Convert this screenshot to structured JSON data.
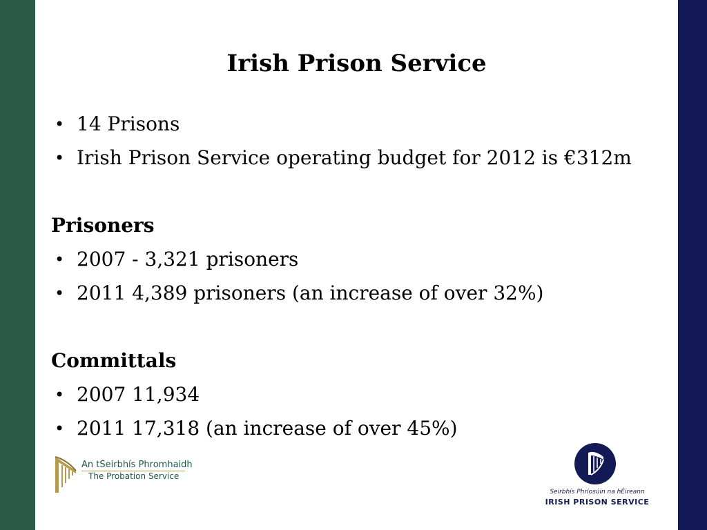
{
  "title": "Irish Prison Service",
  "intro": {
    "items": [
      "14 Prisons",
      "Irish Prison Service operating budget for 2012 is €312m"
    ]
  },
  "prisoners": {
    "heading": "Prisoners",
    "items": [
      "2007 - 3,321 prisoners",
      "2011 4,389 prisoners (an increase of over 32%)"
    ]
  },
  "committals": {
    "heading": "Committals",
    "items": [
      "2007 11,934",
      "2011 17,318 (an increase of over 45%)"
    ]
  },
  "logos": {
    "probation": {
      "line1": "An tSeirbhís Phromhaidh",
      "line2": "The Probation Service"
    },
    "ips": {
      "line1": "Seirbhís Phríosúin na hÉireann",
      "line2": "IRISH PRISON SERVICE"
    }
  },
  "colors": {
    "left_bar": "#2b5a48",
    "right_bar": "#141a56"
  },
  "icons": {
    "bullet": "•",
    "probation": "harp-icon",
    "ips": "harp-icon"
  }
}
